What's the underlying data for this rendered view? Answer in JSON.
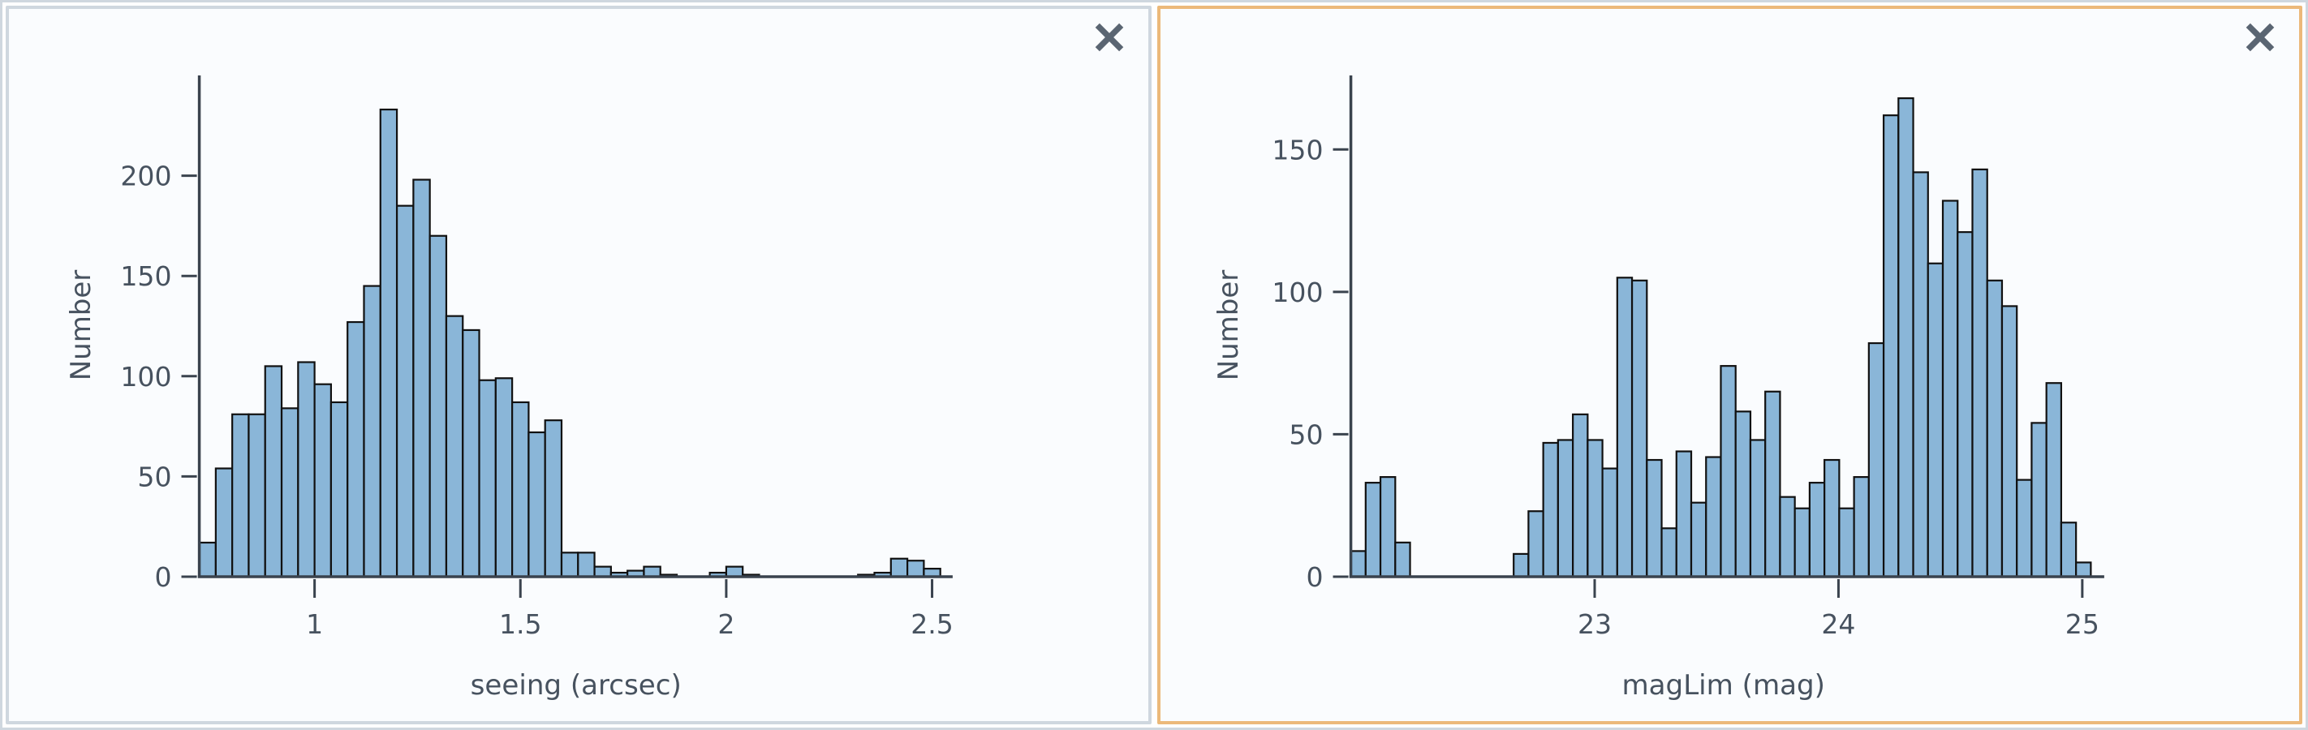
{
  "page": {
    "background_color": "#ffffff",
    "frame_border_color": "#cfd7df"
  },
  "panels": [
    {
      "name": "seeing-histogram-panel",
      "selected": false,
      "border_color": "#cfd7df",
      "background_color": "#fafcfe",
      "close_icon": "x-close",
      "close_icon_color": "#5a6572"
    },
    {
      "name": "maglim-histogram-panel",
      "selected": true,
      "border_color": "#ecb97a",
      "background_color": "#fafcfe",
      "close_icon": "x-close",
      "close_icon_color": "#5a6572"
    }
  ],
  "chart_data": [
    {
      "type": "bar",
      "title": "",
      "xlabel": "seeing (arcsec)",
      "ylabel": "Number",
      "bin_start": 0.72,
      "bin_width": 0.04,
      "values": [
        17,
        54,
        81,
        81,
        105,
        84,
        107,
        96,
        87,
        127,
        145,
        233,
        185,
        198,
        170,
        130,
        123,
        98,
        99,
        87,
        72,
        78,
        12,
        12,
        5,
        2,
        3,
        5,
        1,
        0,
        0,
        2,
        5,
        1,
        0,
        0,
        0,
        0,
        0,
        0,
        1,
        2,
        9,
        8,
        4
      ],
      "x_ticks": [
        1,
        1.5,
        2,
        2.5
      ],
      "y_ticks": [
        0,
        50,
        100,
        150,
        200
      ],
      "xlim": [
        0.72,
        2.55
      ],
      "ylim": [
        0,
        250
      ],
      "grid": false,
      "legend": null,
      "bar_color": "#8ab6d8",
      "bar_edge_color": "#111111",
      "axis_color": "#3a434e",
      "label_color": "#47525f"
    },
    {
      "type": "bar",
      "title": "",
      "xlabel": "magLim (mag)",
      "ylabel": "Number",
      "bin_start": 22.0,
      "bin_width": 0.0607,
      "values": [
        9,
        33,
        35,
        12,
        0,
        0,
        0,
        0,
        0,
        0,
        0,
        8,
        23,
        47,
        48,
        57,
        48,
        38,
        105,
        104,
        41,
        17,
        44,
        26,
        42,
        74,
        58,
        48,
        65,
        28,
        24,
        33,
        41,
        24,
        35,
        82,
        162,
        168,
        142,
        110,
        132,
        121,
        143,
        104,
        95,
        34,
        54,
        68,
        19,
        5
      ],
      "x_ticks": [
        23,
        24,
        25
      ],
      "y_ticks": [
        0,
        50,
        100,
        150
      ],
      "xlim": [
        22.0,
        25.09
      ],
      "ylim": [
        0,
        176
      ],
      "grid": false,
      "legend": null,
      "bar_color": "#8ab6d8",
      "bar_edge_color": "#111111",
      "axis_color": "#3a434e",
      "label_color": "#47525f"
    }
  ]
}
